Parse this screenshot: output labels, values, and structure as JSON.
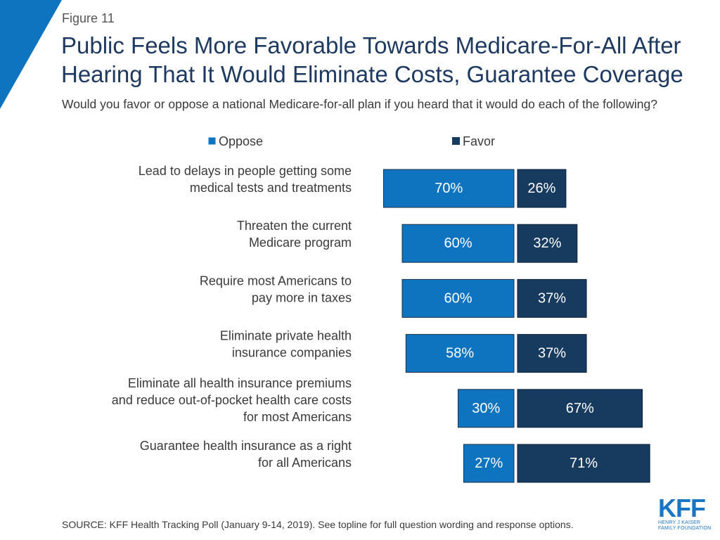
{
  "figure_label": "Figure 11",
  "title": "Public Feels More Favorable Towards Medicare-For-All After Hearing That It Would Eliminate Costs, Guarantee Coverage",
  "subtitle": "Would you favor or oppose a national Medicare-for-all plan if you heard that it would do each of the following?",
  "source": "SOURCE: KFF Health Tracking Poll (January 9-14, 2019). See topline for full question wording and response options.",
  "logo": {
    "mark": "KFF",
    "line1": "HENRY J KAISER",
    "line2": "FAMILY FOUNDATION"
  },
  "colors": {
    "oppose": "#0f74c0",
    "favor": "#173b5f",
    "accent": "#0f74c0",
    "title": "#1f3a60"
  },
  "chart_data": {
    "type": "bar",
    "orientation": "horizontal",
    "stacking": "diverging",
    "categories": [
      [
        "Lead to delays in people getting some",
        "medical tests and treatments"
      ],
      [
        "Threaten the current",
        "Medicare program"
      ],
      [
        "Require most Americans to",
        "pay more in taxes"
      ],
      [
        "Eliminate private health",
        "insurance companies"
      ],
      [
        "Eliminate all health insurance premiums",
        "and reduce out-of-pocket health care costs",
        "for most Americans"
      ],
      [
        "Guarantee health insurance as a right",
        "for all Americans"
      ]
    ],
    "series": [
      {
        "name": "Oppose",
        "values": [
          70,
          60,
          60,
          58,
          30,
          27
        ],
        "labels": [
          "70%",
          "60%",
          "60%",
          "58%",
          "30%",
          "27%"
        ]
      },
      {
        "name": "Favor",
        "values": [
          26,
          32,
          37,
          37,
          67,
          71
        ],
        "labels": [
          "26%",
          "32%",
          "37%",
          "37%",
          "67%",
          "71%"
        ]
      }
    ],
    "legend": [
      "Oppose",
      "Favor"
    ],
    "legend_position": "top",
    "unit": "%",
    "xlim": [
      0,
      100
    ],
    "grid": false
  }
}
